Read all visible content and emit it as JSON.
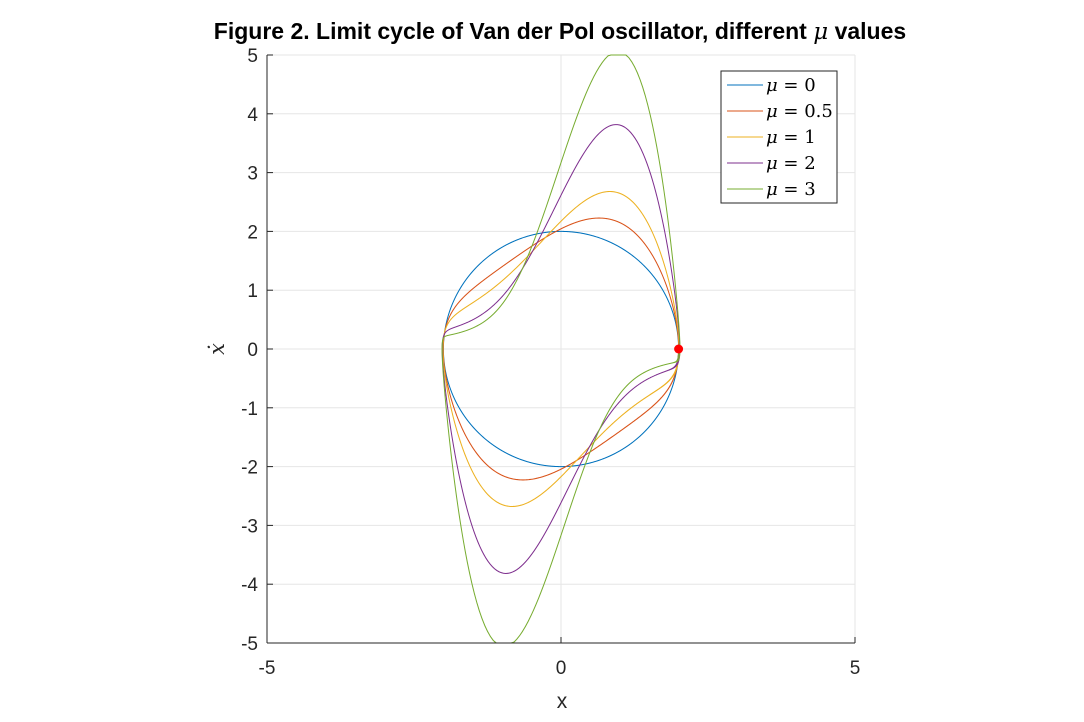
{
  "chart_data": {
    "type": "line",
    "title": "Figure 2. Limit cycle of Van der Pol oscillator, different ",
    "title_symbol": "μ",
    "title_suffix": " values",
    "xlabel": "x",
    "ylabel": "ẋ",
    "xlim": [
      -5,
      5
    ],
    "ylim": [
      -5,
      5
    ],
    "xticks": [
      "-5",
      "0",
      "5"
    ],
    "yticks": [
      "5",
      "4",
      "3",
      "2",
      "1",
      "0",
      "-1",
      "-2",
      "-3",
      "-4",
      "-5"
    ],
    "grid": true,
    "legend_position": "top-right",
    "marker_point": {
      "x": 2,
      "y": 0,
      "color": "#ff0000"
    },
    "series": [
      {
        "mu_label": "0",
        "mu": 0,
        "color": "#0072bd"
      },
      {
        "mu_label": "0.5",
        "mu": 0.5,
        "color": "#d95319"
      },
      {
        "mu_label": "1",
        "mu": 1,
        "color": "#edb120"
      },
      {
        "mu_label": "2",
        "mu": 2,
        "color": "#7e2f8e"
      },
      {
        "mu_label": "3",
        "mu": 3,
        "color": "#77ac30"
      }
    ]
  }
}
